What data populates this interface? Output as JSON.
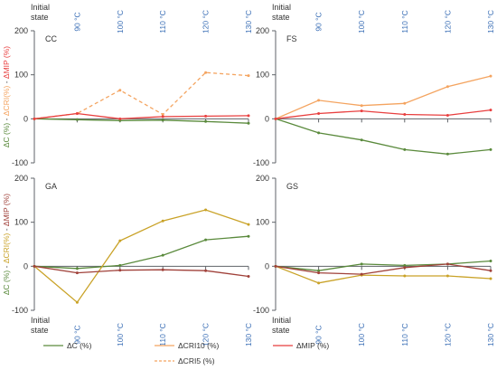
{
  "chart_data": [
    {
      "type": "line",
      "panel_label": "CC",
      "categories": [
        "Initial state",
        "90 °C",
        "100 °C",
        "110 °C",
        "120 °C",
        "130 °C"
      ],
      "ylim": [
        -100,
        200
      ],
      "yticks": [
        -100,
        0,
        100,
        200
      ],
      "grid": false,
      "series": [
        {
          "name": "ΔC (%)",
          "color": "#5a8a3c",
          "style": "solid",
          "values": [
            0,
            -2,
            -4,
            -3,
            -6,
            -10
          ]
        },
        {
          "name": "ΔCRI5 (%)",
          "color": "#f4a460",
          "style": "dashed",
          "values": [
            0,
            12,
            65,
            10,
            105,
            98
          ]
        },
        {
          "name": "ΔMIP (%)",
          "color": "#e83f3f",
          "style": "solid",
          "values": [
            0,
            12,
            0,
            5,
            6,
            7
          ]
        }
      ]
    },
    {
      "type": "line",
      "panel_label": "FS",
      "categories": [
        "Initial state",
        "90 °C",
        "100 °C",
        "110 °C",
        "120 °C",
        "130 °C"
      ],
      "ylim": [
        -100,
        200
      ],
      "yticks": [
        -100,
        0,
        100,
        200
      ],
      "grid": false,
      "series": [
        {
          "name": "ΔC (%)",
          "color": "#5a8a3c",
          "style": "solid",
          "values": [
            0,
            -32,
            -48,
            -70,
            -80,
            -70
          ]
        },
        {
          "name": "ΔCRI10 (%)",
          "color": "#f4a460",
          "style": "solid",
          "values": [
            0,
            42,
            30,
            35,
            73,
            97
          ]
        },
        {
          "name": "ΔMIP (%)",
          "color": "#e83f3f",
          "style": "solid",
          "values": [
            0,
            12,
            18,
            10,
            8,
            20
          ]
        }
      ]
    },
    {
      "type": "line",
      "panel_label": "GA",
      "categories": [
        "Initial state",
        "90 °C",
        "100 °C",
        "110 °C",
        "120 °C",
        "130 °C"
      ],
      "ylim": [
        -100,
        200
      ],
      "yticks": [
        -100,
        0,
        100,
        200
      ],
      "grid": false,
      "series": [
        {
          "name": "ΔC (%)",
          "color": "#5a8a3c",
          "style": "solid",
          "values": [
            0,
            -5,
            2,
            25,
            60,
            68
          ]
        },
        {
          "name": "ΔCRI10 (%)",
          "color": "#c9a227",
          "style": "solid",
          "values": [
            0,
            -82,
            58,
            103,
            128,
            95
          ]
        },
        {
          "name": "ΔMIP (%)",
          "color": "#a0413a",
          "style": "solid",
          "values": [
            0,
            -15,
            -9,
            -8,
            -10,
            -23
          ]
        }
      ]
    },
    {
      "type": "line",
      "panel_label": "GS",
      "categories": [
        "Initial state",
        "90 °C",
        "100 °C",
        "110 °C",
        "120 °C",
        "130 °C"
      ],
      "ylim": [
        -100,
        200
      ],
      "yticks": [
        -100,
        0,
        100,
        200
      ],
      "grid": false,
      "series": [
        {
          "name": "ΔC (%)",
          "color": "#5a8a3c",
          "style": "solid",
          "values": [
            0,
            -10,
            5,
            2,
            5,
            12
          ]
        },
        {
          "name": "ΔCRI10 (%)",
          "color": "#c9a227",
          "style": "solid",
          "values": [
            0,
            -38,
            -20,
            -22,
            -22,
            -28
          ]
        },
        {
          "name": "ΔMIP (%)",
          "color": "#a0413a",
          "style": "solid",
          "values": [
            0,
            -15,
            -18,
            -3,
            5,
            -10
          ]
        }
      ]
    }
  ],
  "figure": {
    "x_first_label_lines": [
      "Initial",
      "state"
    ],
    "y_axis_label_top": {
      "parts": [
        {
          "text": "ΔC (%)",
          "color": "#5a8a3c"
        },
        {
          "text": " - ",
          "color": "#444444"
        },
        {
          "text": "ΔCRI(%)",
          "color": "#f4a460"
        },
        {
          "text": " - ",
          "color": "#444444"
        },
        {
          "text": "ΔMIP (%)",
          "color": "#e83f3f"
        }
      ]
    },
    "y_axis_label_bottom": {
      "parts": [
        {
          "text": "ΔC (%)",
          "color": "#5a8a3c"
        },
        {
          "text": " - ",
          "color": "#444444"
        },
        {
          "text": "ΔCRI(%)",
          "color": "#c9a227"
        },
        {
          "text": " - ",
          "color": "#444444"
        },
        {
          "text": "ΔMIP (%)",
          "color": "#a0413a"
        }
      ]
    },
    "axis_color": "#5f6368",
    "tick_label_color": "#3b6fb6",
    "text_color": "#333333"
  },
  "legend": {
    "placement": "bottom",
    "items": [
      {
        "label": "ΔC (%)",
        "color": "#5a8a3c",
        "style": "solid"
      },
      {
        "label": "ΔCRI10 (%)",
        "color": "#f4a460",
        "style": "solid"
      },
      {
        "label": "ΔMIP (%)",
        "color": "#e83f3f",
        "style": "solid"
      },
      {
        "label": "ΔCRI5 (%)",
        "color": "#f4a460",
        "style": "dashed"
      }
    ]
  }
}
